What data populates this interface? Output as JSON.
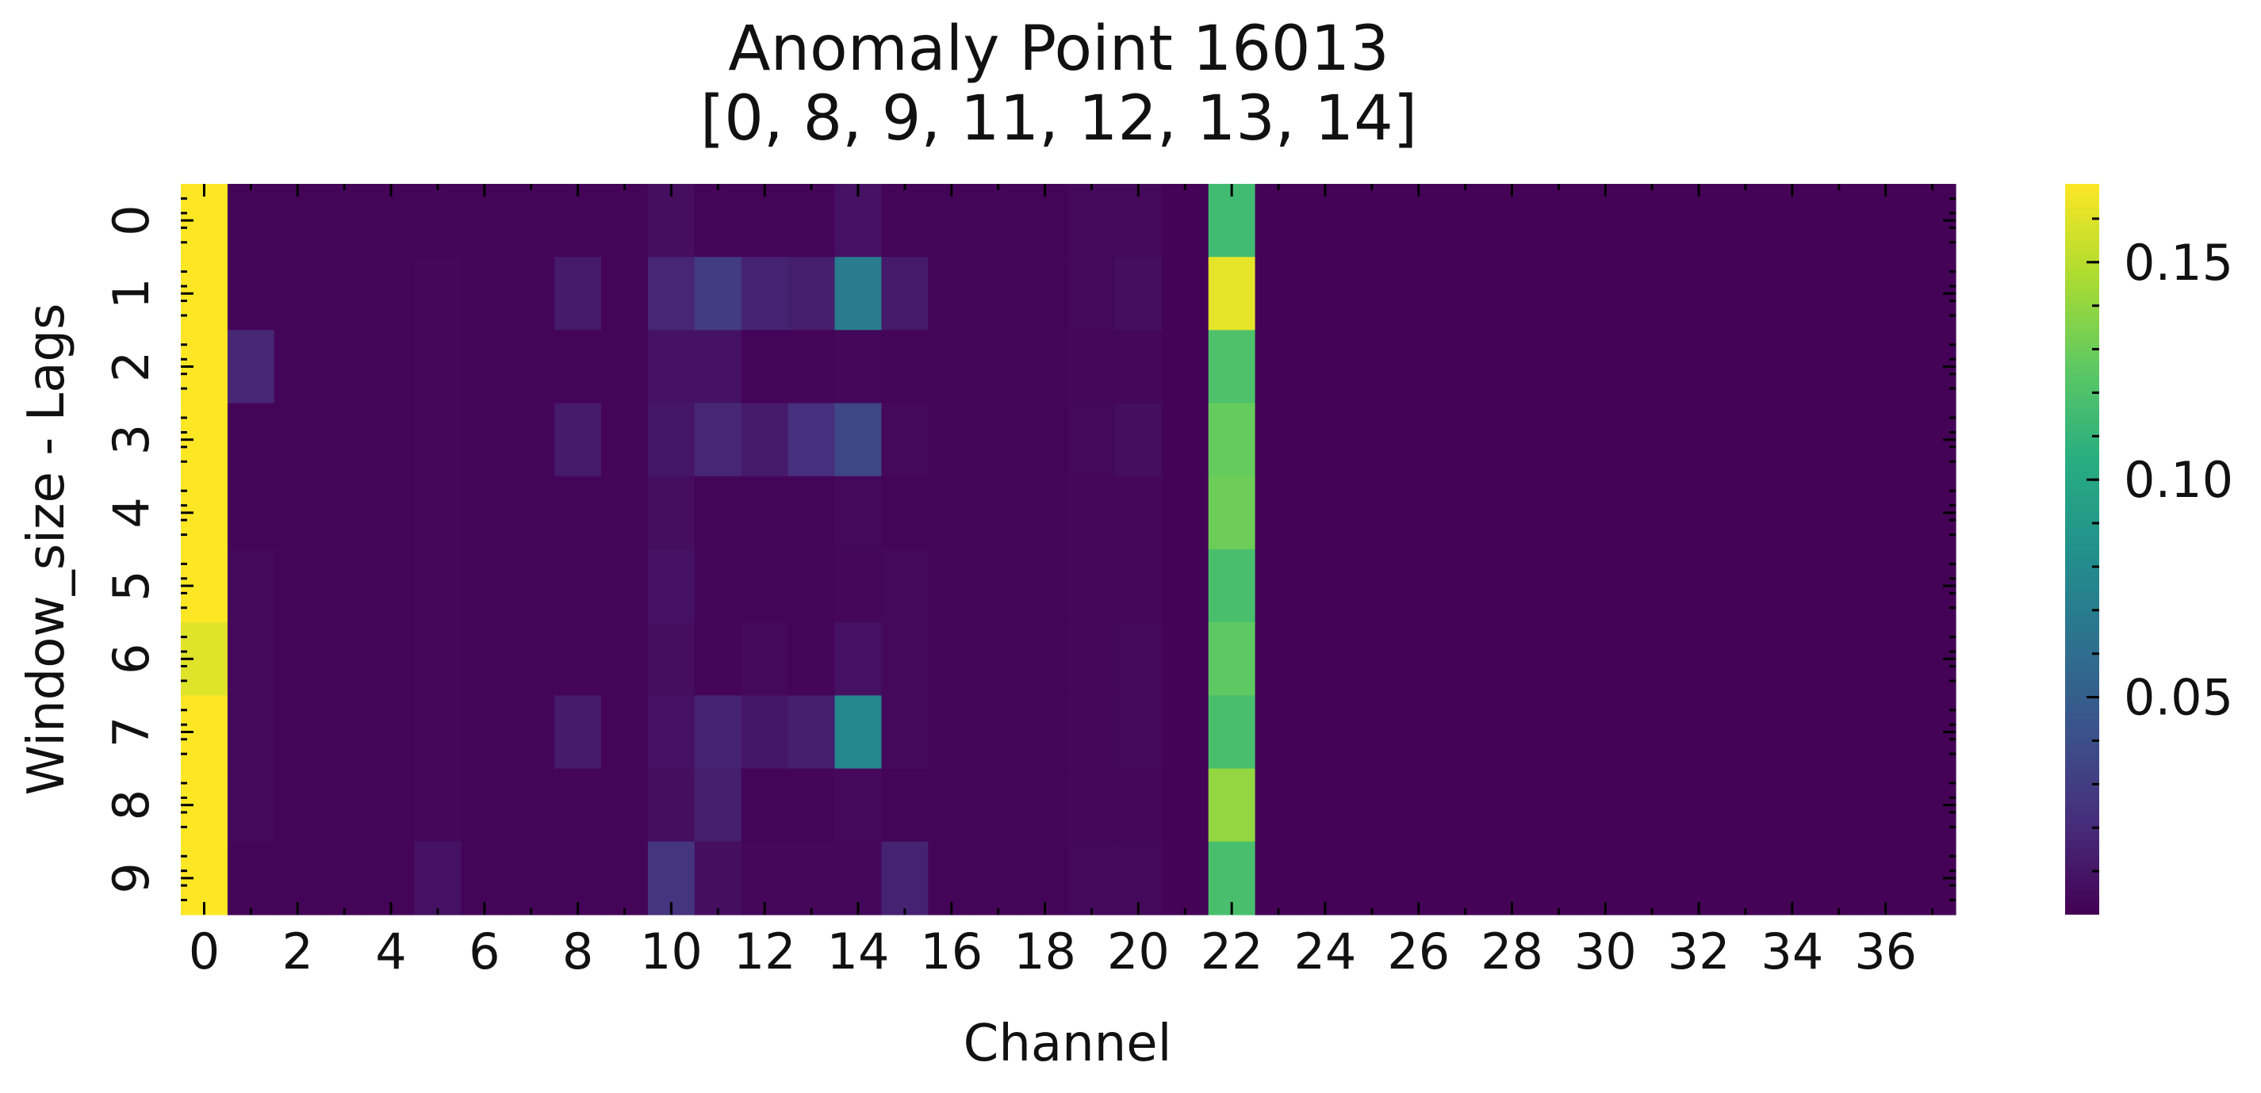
{
  "chart_data": {
    "type": "heatmap",
    "title_lines": [
      "Anomaly Point 16013",
      "[0, 8, 9, 11, 12, 13, 14]"
    ],
    "xlabel": "Channel",
    "ylabel": "Window_size - Lags",
    "x_categories": [
      0,
      1,
      2,
      3,
      4,
      5,
      6,
      7,
      8,
      9,
      10,
      11,
      12,
      13,
      14,
      15,
      16,
      17,
      18,
      19,
      20,
      21,
      22,
      23,
      24,
      25,
      26,
      27,
      28,
      29,
      30,
      31,
      32,
      33,
      34,
      35,
      36,
      37
    ],
    "x_tick_labels": [
      "0",
      "2",
      "4",
      "6",
      "8",
      "10",
      "12",
      "14",
      "16",
      "18",
      "20",
      "22",
      "24",
      "26",
      "28",
      "30",
      "32",
      "34",
      "36"
    ],
    "y_categories": [
      0,
      1,
      2,
      3,
      4,
      5,
      6,
      7,
      8,
      9
    ],
    "y_tick_labels": [
      "0",
      "1",
      "2",
      "3",
      "4",
      "5",
      "6",
      "7",
      "8",
      "9"
    ],
    "colormap": "viridis",
    "vmin": 0.0,
    "vmax": 0.168,
    "colorbar_ticks": [
      0.05,
      0.1,
      0.15
    ],
    "colorbar_tick_labels": [
      "0.05",
      "0.10",
      "0.15"
    ],
    "values": [
      [
        0.168,
        0.002,
        0.002,
        0.002,
        0.002,
        0.002,
        0.002,
        0.002,
        0.002,
        0.002,
        0.006,
        0.002,
        0.002,
        0.002,
        0.008,
        0.002,
        0.002,
        0.002,
        0.002,
        0.004,
        0.004,
        0.001,
        0.115,
        0.001,
        0.001,
        0.001,
        0.001,
        0.001,
        0.001,
        0.001,
        0.001,
        0.001,
        0.001,
        0.001,
        0.001,
        0.001,
        0.001,
        0.001
      ],
      [
        0.168,
        0.002,
        0.002,
        0.002,
        0.002,
        0.003,
        0.002,
        0.002,
        0.012,
        0.002,
        0.018,
        0.03,
        0.016,
        0.014,
        0.07,
        0.012,
        0.002,
        0.002,
        0.002,
        0.004,
        0.006,
        0.001,
        0.162,
        0.001,
        0.001,
        0.001,
        0.001,
        0.001,
        0.001,
        0.001,
        0.001,
        0.001,
        0.001,
        0.001,
        0.001,
        0.001,
        0.001,
        0.001
      ],
      [
        0.168,
        0.018,
        0.002,
        0.002,
        0.002,
        0.003,
        0.002,
        0.002,
        0.002,
        0.002,
        0.008,
        0.008,
        0.002,
        0.002,
        0.003,
        0.002,
        0.002,
        0.002,
        0.002,
        0.003,
        0.003,
        0.001,
        0.12,
        0.001,
        0.001,
        0.001,
        0.001,
        0.001,
        0.001,
        0.001,
        0.001,
        0.001,
        0.001,
        0.001,
        0.001,
        0.001,
        0.001,
        0.001
      ],
      [
        0.168,
        0.002,
        0.002,
        0.002,
        0.002,
        0.003,
        0.002,
        0.002,
        0.012,
        0.002,
        0.01,
        0.018,
        0.012,
        0.022,
        0.035,
        0.004,
        0.002,
        0.002,
        0.002,
        0.004,
        0.006,
        0.001,
        0.128,
        0.001,
        0.001,
        0.001,
        0.001,
        0.001,
        0.001,
        0.001,
        0.001,
        0.001,
        0.001,
        0.001,
        0.001,
        0.001,
        0.001,
        0.001
      ],
      [
        0.168,
        0.002,
        0.002,
        0.002,
        0.002,
        0.003,
        0.002,
        0.002,
        0.002,
        0.002,
        0.006,
        0.002,
        0.002,
        0.002,
        0.004,
        0.002,
        0.002,
        0.002,
        0.002,
        0.003,
        0.003,
        0.001,
        0.13,
        0.001,
        0.001,
        0.001,
        0.001,
        0.001,
        0.001,
        0.001,
        0.001,
        0.001,
        0.001,
        0.001,
        0.001,
        0.001,
        0.001,
        0.001
      ],
      [
        0.168,
        0.004,
        0.002,
        0.002,
        0.002,
        0.003,
        0.002,
        0.002,
        0.002,
        0.002,
        0.008,
        0.002,
        0.002,
        0.002,
        0.003,
        0.004,
        0.002,
        0.002,
        0.002,
        0.003,
        0.003,
        0.001,
        0.118,
        0.001,
        0.001,
        0.001,
        0.001,
        0.001,
        0.001,
        0.001,
        0.001,
        0.001,
        0.001,
        0.001,
        0.001,
        0.001,
        0.001,
        0.001
      ],
      [
        0.16,
        0.004,
        0.002,
        0.002,
        0.002,
        0.003,
        0.002,
        0.002,
        0.002,
        0.002,
        0.006,
        0.002,
        0.004,
        0.002,
        0.008,
        0.004,
        0.002,
        0.002,
        0.002,
        0.003,
        0.004,
        0.001,
        0.126,
        0.001,
        0.001,
        0.001,
        0.001,
        0.001,
        0.001,
        0.001,
        0.001,
        0.001,
        0.001,
        0.001,
        0.001,
        0.001,
        0.001,
        0.001
      ],
      [
        0.168,
        0.004,
        0.002,
        0.002,
        0.002,
        0.003,
        0.002,
        0.002,
        0.012,
        0.002,
        0.008,
        0.016,
        0.01,
        0.014,
        0.078,
        0.004,
        0.002,
        0.002,
        0.002,
        0.003,
        0.004,
        0.001,
        0.118,
        0.001,
        0.001,
        0.001,
        0.001,
        0.001,
        0.001,
        0.001,
        0.001,
        0.001,
        0.001,
        0.001,
        0.001,
        0.001,
        0.001,
        0.001
      ],
      [
        0.168,
        0.004,
        0.002,
        0.002,
        0.002,
        0.003,
        0.002,
        0.002,
        0.002,
        0.002,
        0.006,
        0.014,
        0.002,
        0.002,
        0.004,
        0.002,
        0.002,
        0.002,
        0.002,
        0.003,
        0.003,
        0.001,
        0.14,
        0.001,
        0.001,
        0.001,
        0.001,
        0.001,
        0.001,
        0.001,
        0.001,
        0.001,
        0.001,
        0.001,
        0.001,
        0.001,
        0.001,
        0.001
      ],
      [
        0.168,
        0.002,
        0.002,
        0.002,
        0.002,
        0.008,
        0.002,
        0.002,
        0.002,
        0.002,
        0.025,
        0.006,
        0.003,
        0.003,
        0.003,
        0.016,
        0.002,
        0.002,
        0.002,
        0.004,
        0.004,
        0.001,
        0.118,
        0.001,
        0.001,
        0.001,
        0.001,
        0.001,
        0.001,
        0.001,
        0.001,
        0.001,
        0.001,
        0.001,
        0.001,
        0.001,
        0.001,
        0.001
      ]
    ]
  }
}
